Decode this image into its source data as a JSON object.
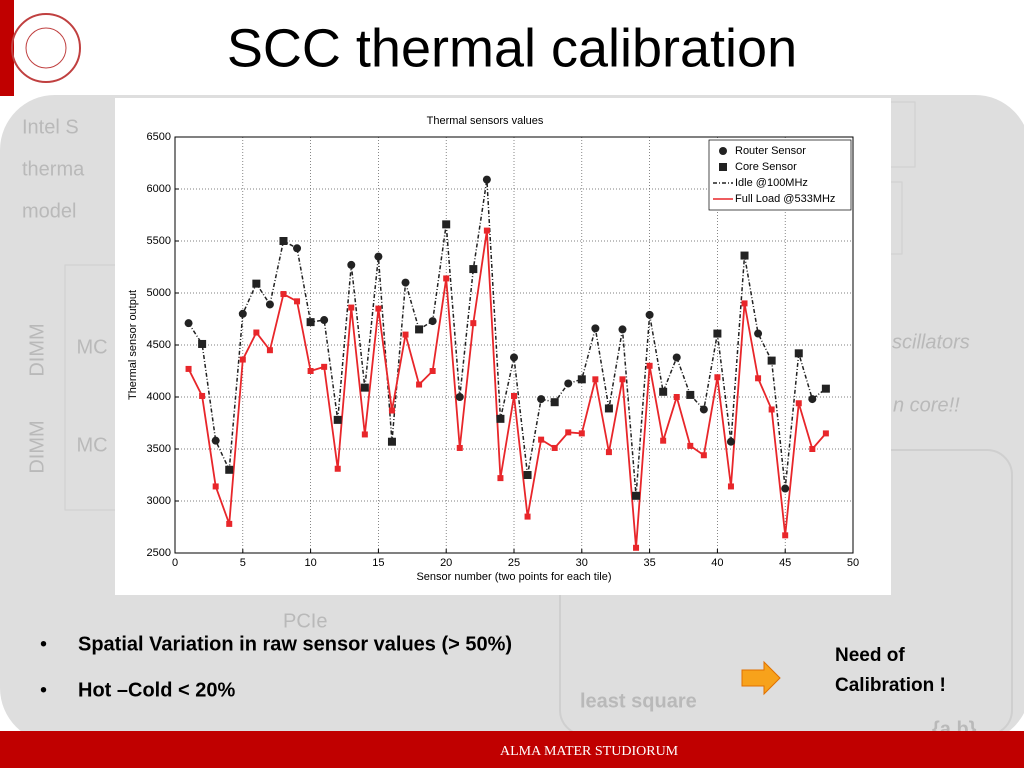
{
  "slide": {
    "title": "SCC thermal calibration",
    "bullets": [
      "Spatial Variation in  raw sensor  values (> 50%)",
      "Hot –Cold < 20%"
    ],
    "callout": [
      "Need of",
      "Calibration !"
    ],
    "footer": "ALMA MATER STUDIORUM",
    "faded": [
      "Intel S",
      "therma",
      "model",
      "scillators",
      "n core!!",
      "least square",
      "{a,b}",
      "PCIe",
      "DIMM",
      "DIMM",
      "MC",
      "MC"
    ]
  },
  "chart_data": {
    "type": "line",
    "title": "Thermal sensors values",
    "x_label": "Sensor number (two points for each tile)",
    "y_label": "Thermal sensor output",
    "x": [
      1,
      2,
      3,
      4,
      5,
      6,
      7,
      8,
      9,
      10,
      11,
      12,
      13,
      14,
      15,
      16,
      17,
      18,
      19,
      20,
      21,
      22,
      23,
      24,
      25,
      26,
      27,
      28,
      29,
      30,
      31,
      32,
      33,
      34,
      35,
      36,
      37,
      38,
      39,
      40,
      41,
      42,
      43,
      44,
      45,
      46,
      47,
      48
    ],
    "marker_legend": [
      {
        "name": "Router Sensor",
        "marker": "circle"
      },
      {
        "name": "Core Sensor",
        "marker": "square"
      }
    ],
    "series": [
      {
        "name": "Idle @100MHz",
        "color": "#222222",
        "dashed": true,
        "values": [
          4710,
          4510,
          3580,
          3300,
          4800,
          5090,
          4890,
          5500,
          5430,
          4720,
          4740,
          3780,
          5270,
          4090,
          5350,
          3570,
          5100,
          4650,
          4730,
          5660,
          4000,
          5230,
          6090,
          3790,
          4380,
          3250,
          3980,
          3950,
          4130,
          4170,
          4660,
          3890,
          4650,
          3050,
          4790,
          4050,
          4380,
          4020,
          3880,
          4610,
          3570,
          5360,
          4610,
          4350,
          3120,
          4420,
          3980,
          4080
        ]
      },
      {
        "name": "Full Load @533MHz",
        "color": "#e8262a",
        "dashed": false,
        "values": [
          4270,
          4010,
          3140,
          2780,
          4360,
          4620,
          4450,
          4990,
          4920,
          4250,
          4290,
          3310,
          4860,
          3640,
          4850,
          3870,
          4600,
          4120,
          4250,
          5140,
          3510,
          4710,
          5600,
          3220,
          4010,
          2850,
          3590,
          3510,
          3660,
          3650,
          4170,
          3470,
          4170,
          2550,
          4300,
          3580,
          4000,
          3530,
          3440,
          4190,
          3140,
          4900,
          4180,
          3880,
          2670,
          3940,
          3500,
          3650
        ]
      }
    ],
    "xlim": [
      0,
      50
    ],
    "xticks": [
      0,
      5,
      10,
      15,
      20,
      25,
      30,
      35,
      40,
      45,
      50
    ],
    "ylim": [
      2500,
      6500
    ],
    "yticks": [
      2500,
      3000,
      3500,
      4000,
      4500,
      5000,
      5500,
      6000,
      6500
    ],
    "grid": true,
    "legend": "upper right"
  }
}
